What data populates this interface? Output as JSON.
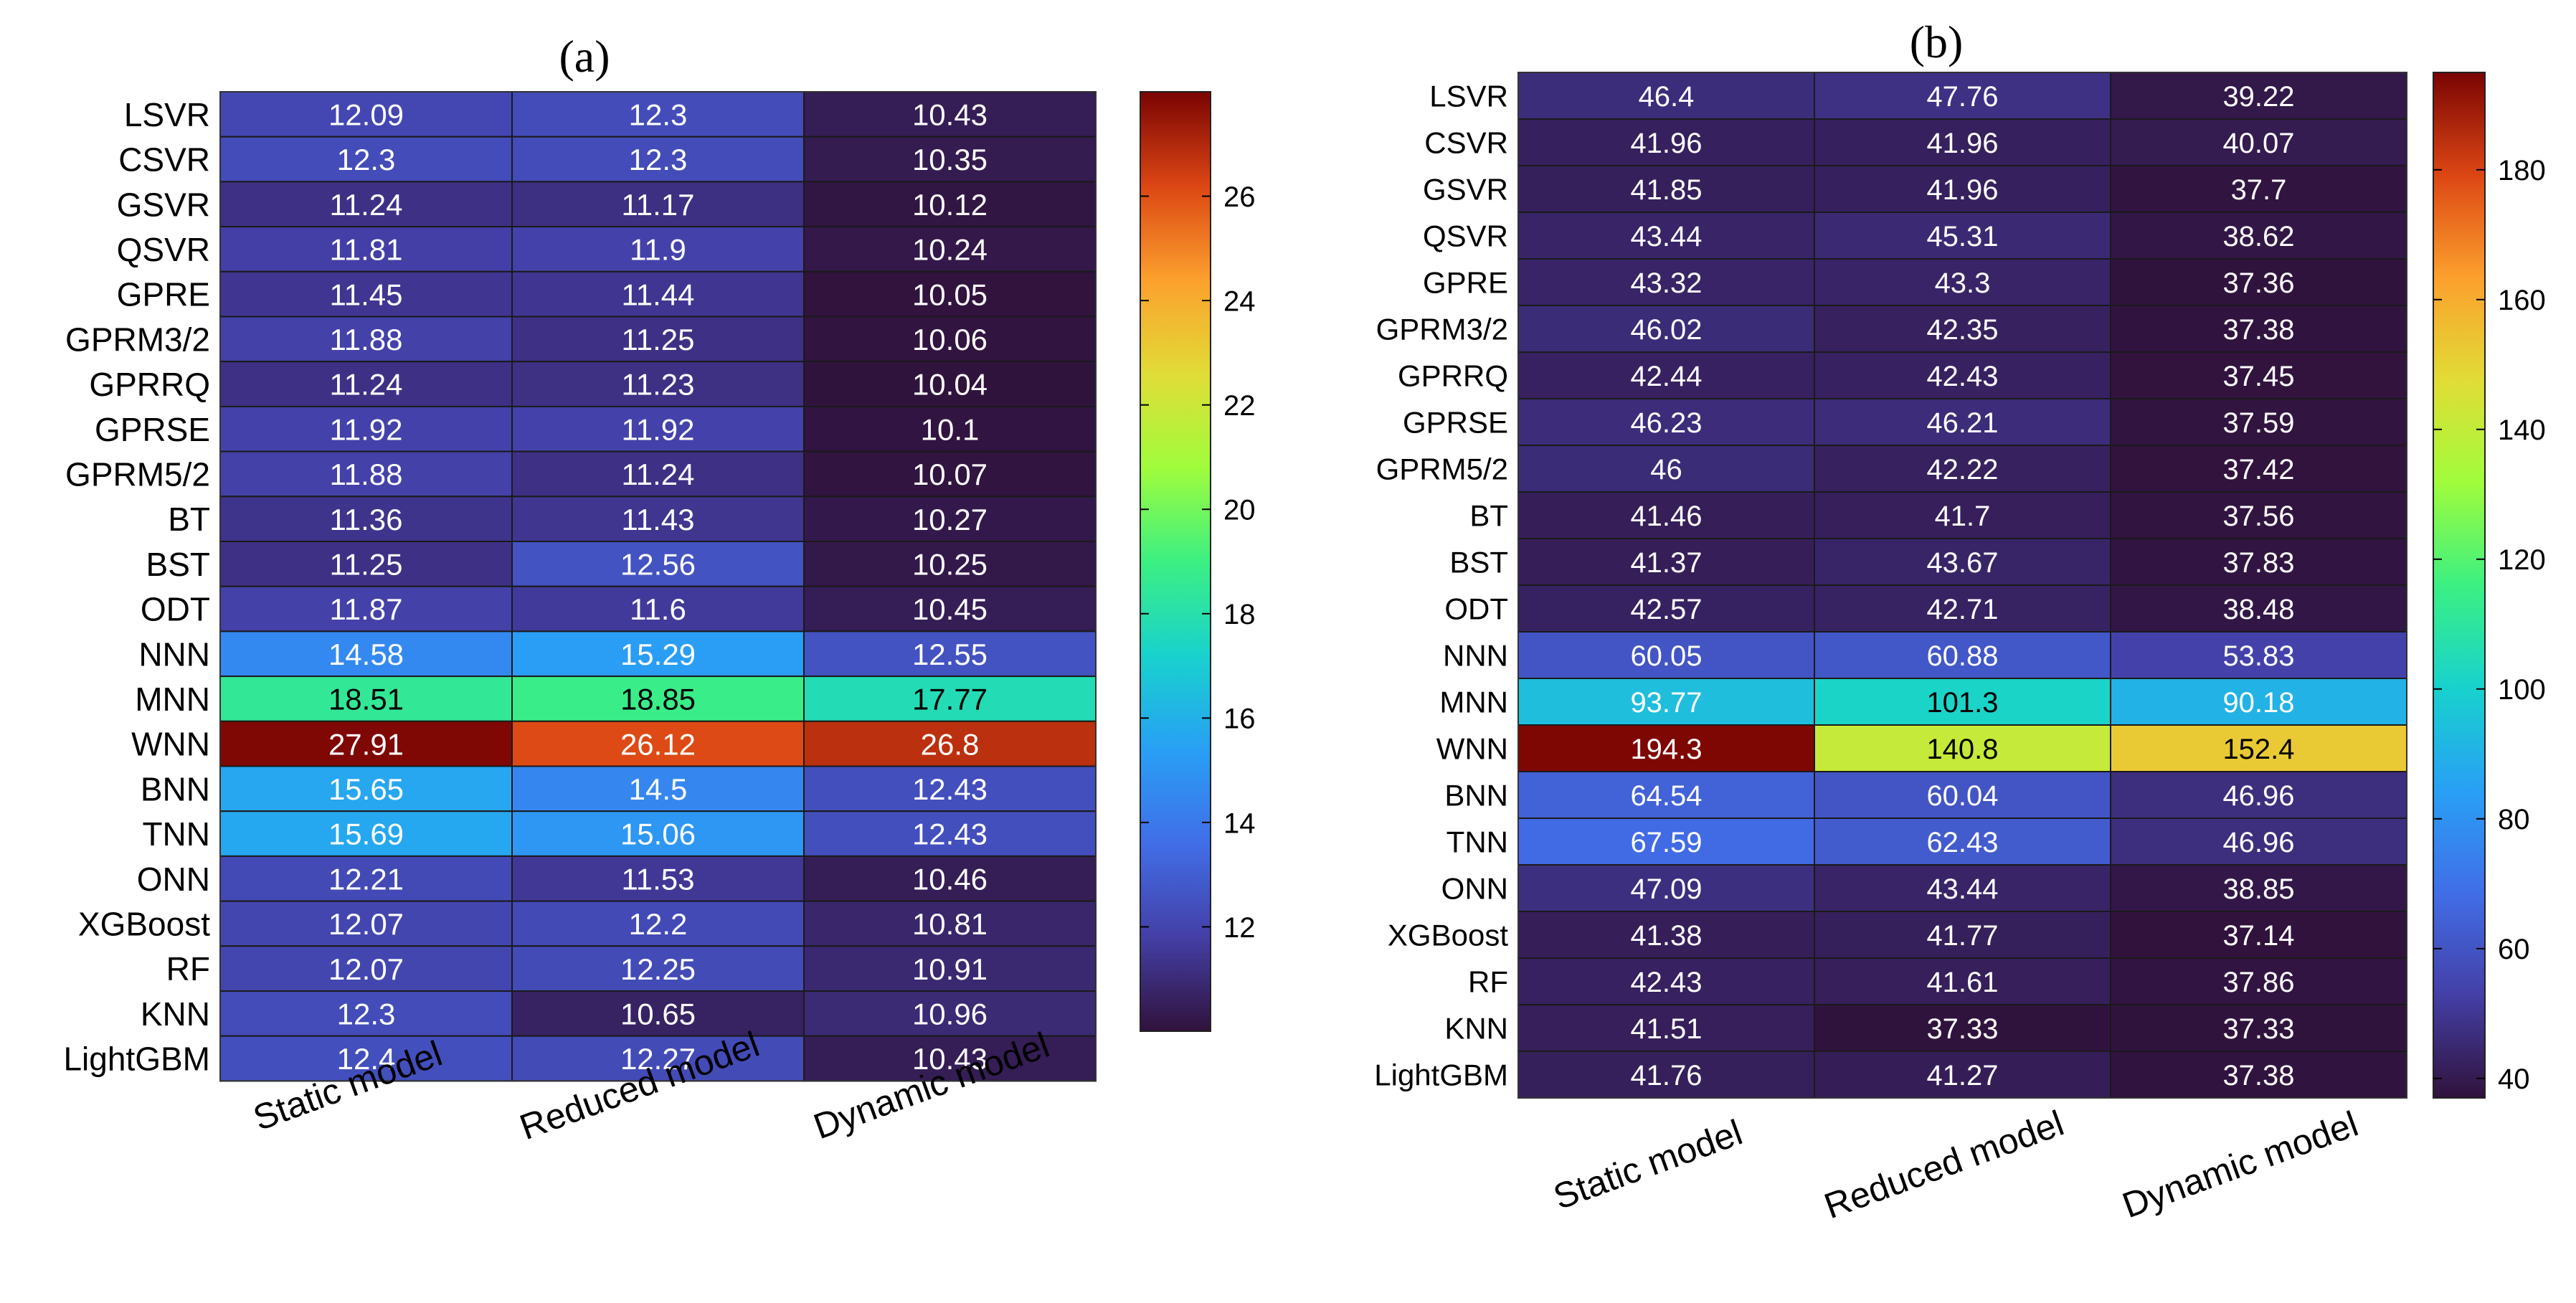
{
  "chart_data": [
    {
      "type": "heatmap",
      "title": "(a)",
      "rows": [
        "LSVR",
        "CSVR",
        "GSVR",
        "QSVR",
        "GPRE",
        "GPRM3/2",
        "GPRRQ",
        "GPRSE",
        "GPRM5/2",
        "BT",
        "BST",
        "ODT",
        "NNN",
        "MNN",
        "WNN",
        "BNN",
        "TNN",
        "ONN",
        "XGBoost",
        "RF",
        "KNN",
        "LightGBM"
      ],
      "columns": [
        "Static model",
        "Reduced model",
        "Dynamic model"
      ],
      "values": [
        [
          "12.09",
          "12.3",
          "10.43"
        ],
        [
          "12.3",
          "12.3",
          "10.35"
        ],
        [
          "11.24",
          "11.17",
          "10.12"
        ],
        [
          "11.81",
          "11.9",
          "10.24"
        ],
        [
          "11.45",
          "11.44",
          "10.05"
        ],
        [
          "11.88",
          "11.25",
          "10.06"
        ],
        [
          "11.24",
          "11.23",
          "10.04"
        ],
        [
          "11.92",
          "11.92",
          "10.1"
        ],
        [
          "11.88",
          "11.24",
          "10.07"
        ],
        [
          "11.36",
          "11.43",
          "10.27"
        ],
        [
          "11.25",
          "12.56",
          "10.25"
        ],
        [
          "11.87",
          "11.6",
          "10.45"
        ],
        [
          "14.58",
          "15.29",
          "12.55"
        ],
        [
          "18.51",
          "18.85",
          "17.77"
        ],
        [
          "27.91",
          "26.12",
          "26.8"
        ],
        [
          "15.65",
          "14.5",
          "12.43"
        ],
        [
          "15.69",
          "15.06",
          "12.43"
        ],
        [
          "12.21",
          "11.53",
          "10.46"
        ],
        [
          "12.07",
          "12.2",
          "10.81"
        ],
        [
          "12.07",
          "12.25",
          "10.91"
        ],
        [
          "12.3",
          "10.65",
          "10.96"
        ],
        [
          "12.4",
          "12.27",
          "10.43"
        ]
      ],
      "colorbar": {
        "min": 10.0,
        "max": 28.0,
        "ticks": [
          "12",
          "14",
          "16",
          "18",
          "20",
          "22",
          "24",
          "26"
        ],
        "colormap": "turbo"
      }
    },
    {
      "type": "heatmap",
      "title": "(b)",
      "rows": [
        "LSVR",
        "CSVR",
        "GSVR",
        "QSVR",
        "GPRE",
        "GPRM3/2",
        "GPRRQ",
        "GPRSE",
        "GPRM5/2",
        "BT",
        "BST",
        "ODT",
        "NNN",
        "MNN",
        "WNN",
        "BNN",
        "TNN",
        "ONN",
        "XGBoost",
        "RF",
        "KNN",
        "LightGBM"
      ],
      "columns": [
        "Static model",
        "Reduced model",
        "Dynamic model"
      ],
      "values": [
        [
          "46.4",
          "47.76",
          "39.22"
        ],
        [
          "41.96",
          "41.96",
          "40.07"
        ],
        [
          "41.85",
          "41.96",
          "37.7"
        ],
        [
          "43.44",
          "45.31",
          "38.62"
        ],
        [
          "43.32",
          "43.3",
          "37.36"
        ],
        [
          "46.02",
          "42.35",
          "37.38"
        ],
        [
          "42.44",
          "42.43",
          "37.45"
        ],
        [
          "46.23",
          "46.21",
          "37.59"
        ],
        [
          "46",
          "42.22",
          "37.42"
        ],
        [
          "41.46",
          "41.7",
          "37.56"
        ],
        [
          "41.37",
          "43.67",
          "37.83"
        ],
        [
          "42.57",
          "42.71",
          "38.48"
        ],
        [
          "60.05",
          "60.88",
          "53.83"
        ],
        [
          "93.77",
          "101.3",
          "90.18"
        ],
        [
          "194.3",
          "140.8",
          "152.4"
        ],
        [
          "64.54",
          "60.04",
          "46.96"
        ],
        [
          "67.59",
          "62.43",
          "46.96"
        ],
        [
          "47.09",
          "43.44",
          "38.85"
        ],
        [
          "41.38",
          "41.77",
          "37.14"
        ],
        [
          "42.43",
          "41.61",
          "37.86"
        ],
        [
          "41.51",
          "37.33",
          "37.33"
        ],
        [
          "41.76",
          "41.27",
          "37.38"
        ]
      ],
      "colorbar": {
        "min": 37.0,
        "max": 195.0,
        "ticks": [
          "40",
          "60",
          "80",
          "100",
          "120",
          "140",
          "160",
          "180"
        ],
        "colormap": "turbo"
      }
    }
  ]
}
